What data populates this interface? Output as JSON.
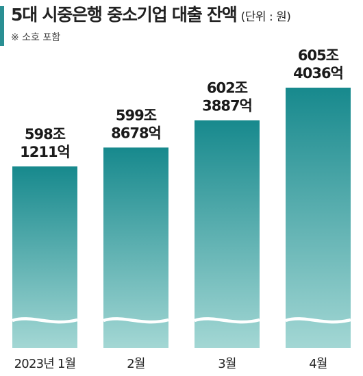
{
  "header": {
    "title": "5대 시중은행 중소기업 대출 잔액",
    "unit": "(단위 : 원)",
    "note": "※ 소호 포함"
  },
  "colors": {
    "bar_top": "#17898d",
    "bar_bottom": "#a3d7d4",
    "accent": "#2a8f93"
  },
  "chart_data": {
    "type": "bar",
    "title": "5대 시중은행 중소기업 대출 잔액",
    "unit": "(단위 : 원)",
    "categories": [
      "2023년 1월",
      "2월",
      "3월",
      "4월"
    ],
    "values": [
      5981211,
      5998678,
      6023887,
      6054036
    ],
    "value_unit": "억원",
    "labels": [
      [
        "598조",
        "1211억"
      ],
      [
        "599조",
        "8678억"
      ],
      [
        "602조",
        "3887억"
      ],
      [
        "605조",
        "4036억"
      ]
    ],
    "axis_break": true,
    "grid": false,
    "legend": "none"
  }
}
